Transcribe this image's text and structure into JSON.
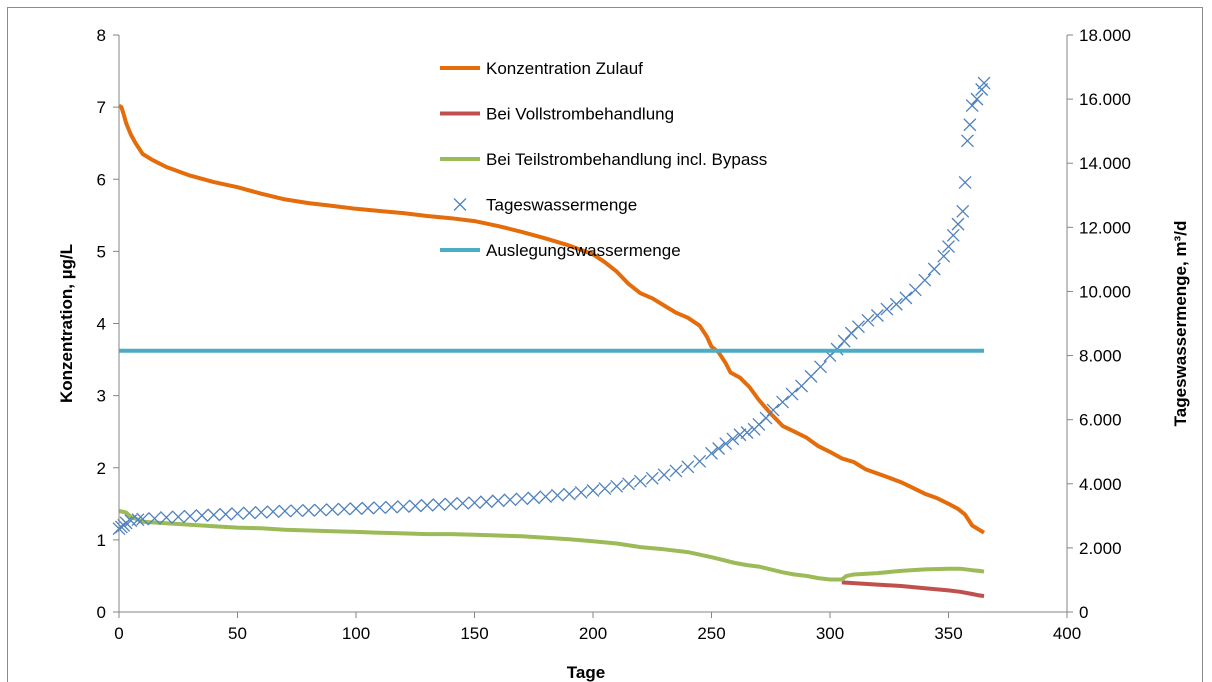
{
  "chart_data": {
    "type": "line",
    "title": "",
    "xlabel": "Tage",
    "ylabel_left": "Konzentration, µg/L",
    "ylabel_right": "Tageswassermenge, m³/d",
    "xlim": [
      0,
      400
    ],
    "ylim_left": [
      0,
      8
    ],
    "ylim_right": [
      0,
      18000
    ],
    "x_ticks": [
      "0",
      "50",
      "100",
      "150",
      "200",
      "250",
      "300",
      "350",
      "400"
    ],
    "y_left_ticks": [
      "0",
      "1",
      "2",
      "3",
      "4",
      "5",
      "6",
      "7",
      "8"
    ],
    "y_right_ticks": [
      "0",
      "2.000",
      "4.000",
      "6.000",
      "8.000",
      "10.000",
      "12.000",
      "14.000",
      "16.000",
      "18.000"
    ],
    "grid": false,
    "legend_position": "top-center",
    "series": [
      {
        "name": "Konzentration Zulauf",
        "axis": "left",
        "style": "line",
        "color": "#E46C0A",
        "points": [
          [
            0,
            7.02
          ],
          [
            1,
            7.0
          ],
          [
            2,
            6.9
          ],
          [
            3,
            6.78
          ],
          [
            5,
            6.62
          ],
          [
            7,
            6.5
          ],
          [
            10,
            6.35
          ],
          [
            14,
            6.27
          ],
          [
            20,
            6.17
          ],
          [
            30,
            6.05
          ],
          [
            40,
            5.96
          ],
          [
            50,
            5.89
          ],
          [
            60,
            5.8
          ],
          [
            70,
            5.72
          ],
          [
            80,
            5.67
          ],
          [
            90,
            5.63
          ],
          [
            100,
            5.59
          ],
          [
            110,
            5.56
          ],
          [
            120,
            5.53
          ],
          [
            130,
            5.49
          ],
          [
            140,
            5.46
          ],
          [
            150,
            5.42
          ],
          [
            160,
            5.35
          ],
          [
            170,
            5.27
          ],
          [
            180,
            5.18
          ],
          [
            190,
            5.08
          ],
          [
            200,
            4.96
          ],
          [
            205,
            4.85
          ],
          [
            210,
            4.72
          ],
          [
            215,
            4.55
          ],
          [
            220,
            4.42
          ],
          [
            225,
            4.35
          ],
          [
            230,
            4.25
          ],
          [
            235,
            4.15
          ],
          [
            240,
            4.08
          ],
          [
            245,
            3.97
          ],
          [
            248,
            3.82
          ],
          [
            250,
            3.68
          ],
          [
            253,
            3.6
          ],
          [
            256,
            3.45
          ],
          [
            258,
            3.32
          ],
          [
            262,
            3.25
          ],
          [
            266,
            3.12
          ],
          [
            270,
            2.94
          ],
          [
            275,
            2.75
          ],
          [
            280,
            2.58
          ],
          [
            285,
            2.5
          ],
          [
            290,
            2.42
          ],
          [
            295,
            2.3
          ],
          [
            300,
            2.22
          ],
          [
            305,
            2.13
          ],
          [
            310,
            2.08
          ],
          [
            315,
            1.98
          ],
          [
            320,
            1.92
          ],
          [
            325,
            1.86
          ],
          [
            330,
            1.8
          ],
          [
            335,
            1.72
          ],
          [
            340,
            1.64
          ],
          [
            345,
            1.58
          ],
          [
            350,
            1.5
          ],
          [
            354,
            1.43
          ],
          [
            357,
            1.35
          ],
          [
            360,
            1.2
          ],
          [
            363,
            1.14
          ],
          [
            365,
            1.1
          ]
        ]
      },
      {
        "name": "Bei Vollstrombehandlung",
        "axis": "left",
        "style": "line",
        "color": "#C0504D",
        "points": [
          [
            305,
            0.41
          ],
          [
            310,
            0.4
          ],
          [
            320,
            0.38
          ],
          [
            330,
            0.36
          ],
          [
            340,
            0.33
          ],
          [
            350,
            0.3
          ],
          [
            355,
            0.28
          ],
          [
            360,
            0.25
          ],
          [
            363,
            0.23
          ],
          [
            365,
            0.22
          ]
        ]
      },
      {
        "name": "Bei Teilstrombehandlung incl. Bypass",
        "axis": "left",
        "style": "line",
        "color": "#9BBB59",
        "points": [
          [
            0,
            1.4
          ],
          [
            3,
            1.38
          ],
          [
            5,
            1.32
          ],
          [
            8,
            1.28
          ],
          [
            10,
            1.25
          ],
          [
            20,
            1.23
          ],
          [
            30,
            1.21
          ],
          [
            40,
            1.19
          ],
          [
            50,
            1.17
          ],
          [
            60,
            1.16
          ],
          [
            70,
            1.14
          ],
          [
            80,
            1.13
          ],
          [
            90,
            1.12
          ],
          [
            100,
            1.11
          ],
          [
            110,
            1.1
          ],
          [
            120,
            1.09
          ],
          [
            130,
            1.08
          ],
          [
            140,
            1.08
          ],
          [
            150,
            1.07
          ],
          [
            160,
            1.06
          ],
          [
            170,
            1.05
          ],
          [
            180,
            1.03
          ],
          [
            190,
            1.01
          ],
          [
            200,
            0.98
          ],
          [
            210,
            0.95
          ],
          [
            220,
            0.9
          ],
          [
            230,
            0.87
          ],
          [
            240,
            0.83
          ],
          [
            250,
            0.76
          ],
          [
            255,
            0.72
          ],
          [
            260,
            0.68
          ],
          [
            265,
            0.65
          ],
          [
            270,
            0.63
          ],
          [
            275,
            0.59
          ],
          [
            280,
            0.55
          ],
          [
            285,
            0.52
          ],
          [
            290,
            0.5
          ],
          [
            295,
            0.47
          ],
          [
            300,
            0.45
          ],
          [
            305,
            0.45
          ],
          [
            307,
            0.5
          ],
          [
            310,
            0.52
          ],
          [
            320,
            0.54
          ],
          [
            330,
            0.57
          ],
          [
            340,
            0.59
          ],
          [
            350,
            0.6
          ],
          [
            355,
            0.6
          ],
          [
            360,
            0.58
          ],
          [
            363,
            0.57
          ],
          [
            365,
            0.56
          ]
        ]
      },
      {
        "name": "Tageswassermenge",
        "axis": "right",
        "style": "markers",
        "marker": "x",
        "color": "#4F81BD",
        "points": [
          [
            0,
            2600
          ],
          [
            1,
            2650
          ],
          [
            2,
            2700
          ],
          [
            3,
            2780
          ],
          [
            5,
            2850
          ],
          [
            8,
            2880
          ],
          [
            10,
            2900
          ],
          [
            15,
            2920
          ],
          [
            20,
            2950
          ],
          [
            25,
            2970
          ],
          [
            30,
            2990
          ],
          [
            35,
            3010
          ],
          [
            40,
            3030
          ],
          [
            45,
            3050
          ],
          [
            50,
            3070
          ],
          [
            55,
            3090
          ],
          [
            60,
            3110
          ],
          [
            65,
            3130
          ],
          [
            70,
            3150
          ],
          [
            75,
            3160
          ],
          [
            80,
            3170
          ],
          [
            85,
            3180
          ],
          [
            90,
            3195
          ],
          [
            95,
            3210
          ],
          [
            100,
            3225
          ],
          [
            105,
            3240
          ],
          [
            110,
            3255
          ],
          [
            115,
            3270
          ],
          [
            120,
            3290
          ],
          [
            125,
            3310
          ],
          [
            130,
            3330
          ],
          [
            135,
            3350
          ],
          [
            140,
            3370
          ],
          [
            145,
            3390
          ],
          [
            150,
            3410
          ],
          [
            155,
            3440
          ],
          [
            160,
            3470
          ],
          [
            165,
            3500
          ],
          [
            170,
            3530
          ],
          [
            175,
            3560
          ],
          [
            180,
            3600
          ],
          [
            185,
            3640
          ],
          [
            190,
            3680
          ],
          [
            195,
            3730
          ],
          [
            200,
            3790
          ],
          [
            205,
            3850
          ],
          [
            210,
            3920
          ],
          [
            215,
            4000
          ],
          [
            220,
            4080
          ],
          [
            225,
            4170
          ],
          [
            230,
            4280
          ],
          [
            235,
            4400
          ],
          [
            240,
            4530
          ],
          [
            245,
            4700
          ],
          [
            250,
            4950
          ],
          [
            253,
            5100
          ],
          [
            256,
            5250
          ],
          [
            259,
            5400
          ],
          [
            262,
            5530
          ],
          [
            265,
            5600
          ],
          [
            268,
            5700
          ],
          [
            270,
            5850
          ],
          [
            273,
            6050
          ],
          [
            276,
            6300
          ],
          [
            280,
            6550
          ],
          [
            284,
            6800
          ],
          [
            288,
            7050
          ],
          [
            292,
            7350
          ],
          [
            296,
            7650
          ],
          [
            300,
            8000
          ],
          [
            303,
            8200
          ],
          [
            306,
            8450
          ],
          [
            309,
            8700
          ],
          [
            312,
            8900
          ],
          [
            316,
            9100
          ],
          [
            320,
            9250
          ],
          [
            324,
            9450
          ],
          [
            328,
            9600
          ],
          [
            332,
            9800
          ],
          [
            336,
            10050
          ],
          [
            340,
            10350
          ],
          [
            344,
            10700
          ],
          [
            348,
            11100
          ],
          [
            350,
            11400
          ],
          [
            352,
            11750
          ],
          [
            354,
            12100
          ],
          [
            356,
            12500
          ],
          [
            357,
            13400
          ],
          [
            358,
            14700
          ],
          [
            359,
            15200
          ],
          [
            360,
            15800
          ],
          [
            362,
            16000
          ],
          [
            364,
            16300
          ],
          [
            365,
            16500
          ]
        ]
      },
      {
        "name": "Auslegungswassermenge",
        "axis": "right",
        "style": "line",
        "color": "#4BACC6",
        "points": [
          [
            0,
            8150
          ],
          [
            365,
            8150
          ]
        ]
      }
    ]
  }
}
